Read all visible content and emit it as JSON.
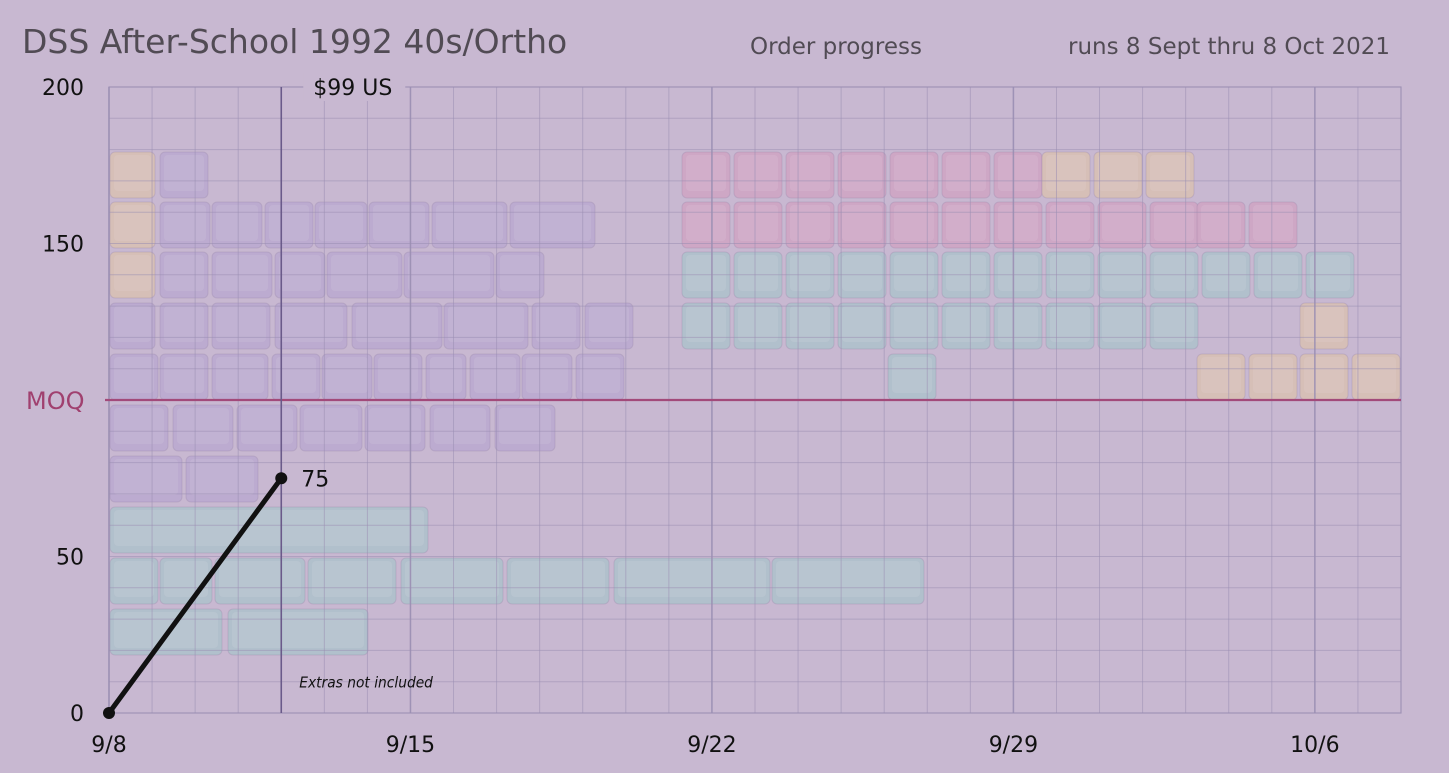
{
  "title": "DSS After-School 1992 40s/Ortho",
  "subtitle": "Order progress",
  "date_range": "runs 8 Sept thru 8 Oct 2021",
  "colors": {
    "background": "#c8b8d1",
    "grid": "#9b8fb3",
    "moq_line": "#a24a7a",
    "moq_label": "#a0406f",
    "line": "#111111",
    "purple_keys": "#b3a2cf",
    "teal_keys": "#9fc8c8",
    "pink_keys": "#d49bbd",
    "yellow_keys": "#e2c6a3"
  },
  "chart_data": {
    "type": "line",
    "title": "DSS After-School 1992 40s/Ortho",
    "subtitle": "Order progress",
    "xlabel": "",
    "ylabel": "",
    "x_range": [
      "2021-09-08",
      "2021-10-08"
    ],
    "ylim": [
      0,
      200
    ],
    "grid": true,
    "x_ticks": [
      "9/8",
      "9/15",
      "9/22",
      "9/29",
      "10/6"
    ],
    "x_tick_dates": [
      "2021-09-08",
      "2021-09-15",
      "2021-09-22",
      "2021-09-29",
      "2021-10-06"
    ],
    "y_ticks": [
      0,
      50,
      150,
      200
    ],
    "series": [
      {
        "points": [
          {
            "x": "2021-09-08",
            "y": 0
          },
          {
            "x": "2021-09-12",
            "y": 75
          }
        ]
      }
    ],
    "data_labels": [
      {
        "x": "2021-09-12",
        "y": 75,
        "text": "75"
      }
    ],
    "reference_lines": [
      {
        "axis": "y",
        "value": 100,
        "label": "MOQ"
      },
      {
        "axis": "x",
        "value": "2021-09-12",
        "label": "$99 US"
      }
    ],
    "annotations": [
      {
        "x": "2021-09-12",
        "y": 10,
        "text": "Extras not included"
      }
    ]
  }
}
